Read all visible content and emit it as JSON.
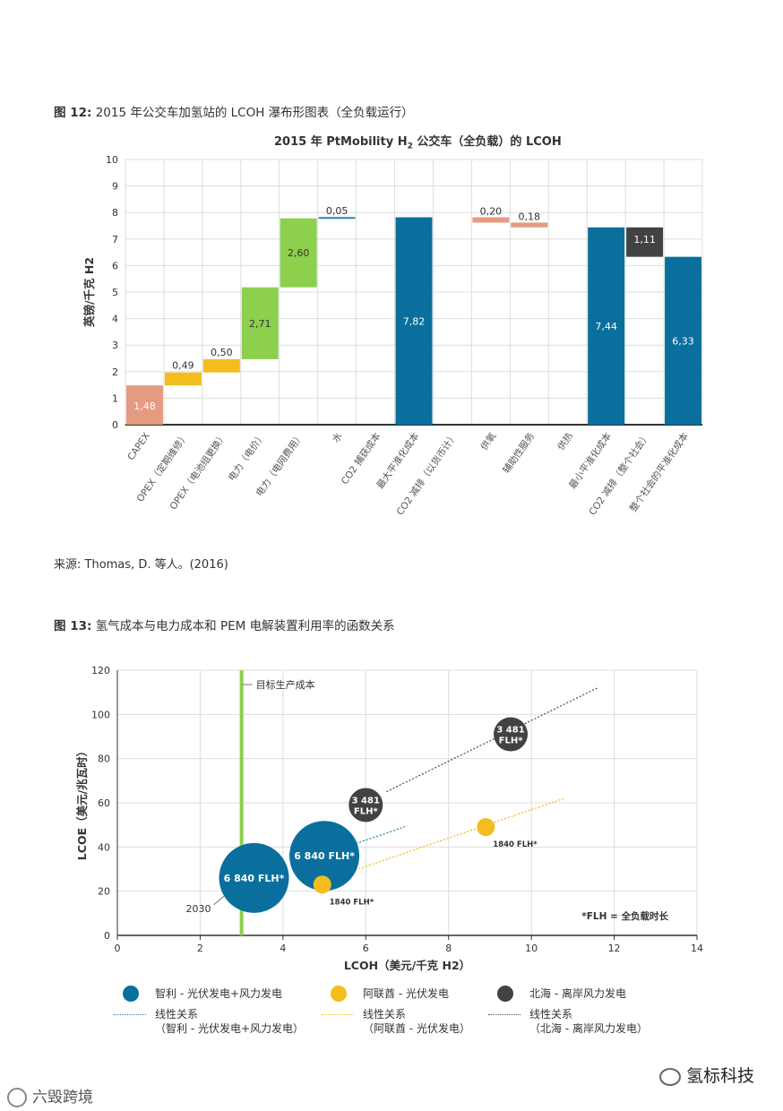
{
  "figure12": {
    "label": "图 12:",
    "caption": "2015 年公交车加氢站的 LCOH 瀑布形图表（全负载运行）",
    "chart_title_prefix": "2015 年 PtMobility H",
    "chart_title_sub": "2",
    "chart_title_suffix": " 公交车（全负载）的 LCOH",
    "source": "来源: Thomas, D. 等人。(2016)"
  },
  "figure13": {
    "label": "图 13:",
    "caption": "氢气成本与电力成本和 PEM 电解装置利用率的函数关系",
    "target_label": "目标生产成本",
    "year_label": "2030",
    "note": "*FLH = 全负载时长"
  },
  "colors": {
    "salmon": "#E59A82",
    "yellow": "#F2BD1D",
    "green": "#8CD04E",
    "blue": "#0A6F9C",
    "dark": "#424242",
    "teal_line": "#2E86AB",
    "axis": "#333333",
    "grid": "#DDDDDD"
  },
  "chart_data": [
    {
      "type": "bar",
      "subtype": "waterfall",
      "title": "2015 年 PtMobility H2 公交车（全负载）的 LCOH",
      "ylabel": "英镑/千克 H2",
      "ylim": [
        0,
        10
      ],
      "yticks": [
        "0",
        "1",
        "2",
        "3",
        "4",
        "5",
        "6",
        "7",
        "8",
        "9",
        "10"
      ],
      "categories": [
        "CAPEX",
        "OPEX（定期维修）",
        "OPEX（电池组更换）",
        "电力（电价）",
        "电力（电网费用）",
        "水",
        "CO2 捕获成本",
        "最大平准化成本",
        "CO2 减排（以货币计）",
        "供氧",
        "辅助性服务",
        "供热",
        "最小平准化成本",
        "CO2 减排（整个社会）",
        "整个社会的平准化成本"
      ],
      "bars": [
        {
          "base": 0,
          "value": 1.48,
          "label": "1,48",
          "kind": "salmon"
        },
        {
          "base": 1.48,
          "value": 0.49,
          "label": "0,49",
          "kind": "yellow"
        },
        {
          "base": 1.97,
          "value": 0.5,
          "label": "0,50",
          "kind": "yellow"
        },
        {
          "base": 2.47,
          "value": 2.71,
          "label": "2,71",
          "kind": "green"
        },
        {
          "base": 5.18,
          "value": 2.6,
          "label": "2,60",
          "kind": "green"
        },
        {
          "base": 7.78,
          "value": 0.05,
          "label": "0,05",
          "kind": "teal"
        },
        {
          "base": 0,
          "value": 0,
          "label": "",
          "kind": "none"
        },
        {
          "base": 0,
          "value": 7.82,
          "label": "7,82",
          "kind": "blue"
        },
        {
          "base": 0,
          "value": 0,
          "label": "",
          "kind": "none"
        },
        {
          "base": 7.62,
          "value": 0.2,
          "label": "0,20",
          "kind": "salmon"
        },
        {
          "base": 7.44,
          "value": 0.18,
          "label": "0,18",
          "kind": "salmon"
        },
        {
          "base": 0,
          "value": 0,
          "label": "",
          "kind": "none"
        },
        {
          "base": 0,
          "value": 7.44,
          "label": "7,44",
          "kind": "blue"
        },
        {
          "base": 6.33,
          "value": 1.11,
          "label": "1,11",
          "kind": "dark"
        },
        {
          "base": 0,
          "value": 6.33,
          "label": "6,33",
          "kind": "blue"
        }
      ]
    },
    {
      "type": "scatter",
      "subtype": "bubble",
      "xlabel": "LCOH（美元/千克 H2）",
      "ylabel": "LCOE（美元/兆瓦时）",
      "xlim": [
        0,
        14
      ],
      "ylim": [
        0,
        120
      ],
      "xticks": [
        "0",
        "2",
        "4",
        "6",
        "8",
        "10",
        "12",
        "14"
      ],
      "yticks": [
        "0",
        "20",
        "40",
        "60",
        "80",
        "100",
        "120"
      ],
      "target_x": 3,
      "points": [
        {
          "series": "chile",
          "x": 3.3,
          "y": 26,
          "size": "large",
          "label": "6 840 FLH*"
        },
        {
          "series": "chile",
          "x": 5.0,
          "y": 36,
          "size": "large",
          "label": "6 840 FLH*"
        },
        {
          "series": "uae",
          "x": 4.95,
          "y": 23,
          "size": "small",
          "label": "1840 FLH*"
        },
        {
          "series": "uae",
          "x": 8.9,
          "y": 49,
          "size": "small",
          "label": "1840 FLH*"
        },
        {
          "series": "northsea",
          "x": 6.0,
          "y": 59,
          "size": "medium",
          "label": "3 481 FLH*"
        },
        {
          "series": "northsea",
          "x": 9.5,
          "y": 91,
          "size": "medium",
          "label": "3 481 FLH*"
        }
      ],
      "trendlines": [
        {
          "series": "chile",
          "x": [
            5.6,
            7.0
          ],
          "y": [
            40.5,
            49.5
          ]
        },
        {
          "series": "uae",
          "x": [
            5.5,
            10.8
          ],
          "y": [
            28,
            62
          ]
        },
        {
          "series": "northsea",
          "x": [
            6.5,
            11.6
          ],
          "y": [
            65,
            112
          ]
        }
      ],
      "legend": [
        {
          "key": "chile",
          "label": "智利 - 光伏发电+风力发电",
          "line1": "线性关系",
          "line2": "（智利 - 光伏发电+风力发电）"
        },
        {
          "key": "uae",
          "label": "阿联酋 - 光伏发电",
          "line1": "线性关系",
          "line2": "（阿联酋 - 光伏发电）"
        },
        {
          "key": "northsea",
          "label": "北海 - 离岸风力发电",
          "line1": "线性关系",
          "line2": "（北海 - 离岸风力发电）"
        }
      ]
    }
  ],
  "watermark": {
    "left": "六毁跨境",
    "right": "氢标科技"
  }
}
